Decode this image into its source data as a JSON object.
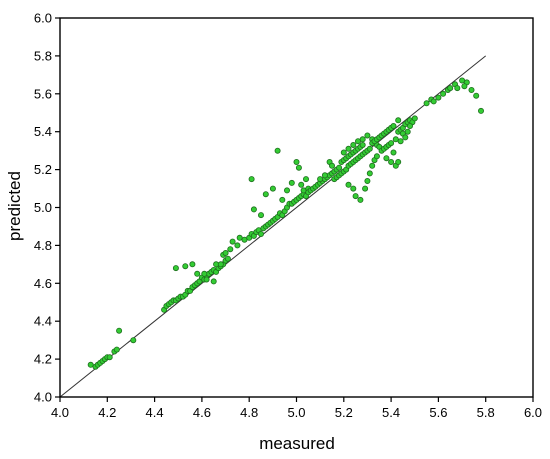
{
  "chart_data": {
    "type": "scatter",
    "xlabel": "measured",
    "ylabel": "predicted",
    "xlim": [
      4.0,
      6.0
    ],
    "ylim": [
      4.0,
      6.0
    ],
    "x_ticks": [
      "4.0",
      "4.2",
      "4.4",
      "4.6",
      "4.8",
      "5.0",
      "5.2",
      "5.4",
      "5.6",
      "5.8",
      "6.0"
    ],
    "y_ticks": [
      "4.0",
      "4.2",
      "4.4",
      "4.6",
      "4.8",
      "5.0",
      "5.2",
      "5.4",
      "5.6",
      "5.8",
      "6.0"
    ],
    "grid": false,
    "reference_line": {
      "from": [
        4.0,
        4.0
      ],
      "to": [
        5.8,
        5.8
      ],
      "color": "#333333"
    },
    "marker_color": "#33cc33",
    "series": [
      {
        "points": [
          [
            4.13,
            4.17
          ],
          [
            4.15,
            4.16
          ],
          [
            4.16,
            4.17
          ],
          [
            4.17,
            4.18
          ],
          [
            4.18,
            4.19
          ],
          [
            4.19,
            4.2
          ],
          [
            4.2,
            4.21
          ],
          [
            4.21,
            4.21
          ],
          [
            4.23,
            4.24
          ],
          [
            4.24,
            4.25
          ],
          [
            4.25,
            4.35
          ],
          [
            4.31,
            4.3
          ],
          [
            4.44,
            4.46
          ],
          [
            4.45,
            4.48
          ],
          [
            4.46,
            4.49
          ],
          [
            4.47,
            4.5
          ],
          [
            4.48,
            4.51
          ],
          [
            4.49,
            4.51
          ],
          [
            4.5,
            4.52
          ],
          [
            4.51,
            4.53
          ],
          [
            4.52,
            4.53
          ],
          [
            4.53,
            4.54
          ],
          [
            4.54,
            4.56
          ],
          [
            4.55,
            4.56
          ],
          [
            4.56,
            4.58
          ],
          [
            4.57,
            4.59
          ],
          [
            4.58,
            4.6
          ],
          [
            4.59,
            4.61
          ],
          [
            4.6,
            4.63
          ],
          [
            4.61,
            4.62
          ],
          [
            4.62,
            4.64
          ],
          [
            4.63,
            4.65
          ],
          [
            4.64,
            4.66
          ],
          [
            4.65,
            4.67
          ],
          [
            4.66,
            4.66
          ],
          [
            4.67,
            4.68
          ],
          [
            4.68,
            4.69
          ],
          [
            4.69,
            4.7
          ],
          [
            4.7,
            4.72
          ],
          [
            4.71,
            4.73
          ],
          [
            4.49,
            4.68
          ],
          [
            4.53,
            4.69
          ],
          [
            4.56,
            4.7
          ],
          [
            4.58,
            4.65
          ],
          [
            4.61,
            4.65
          ],
          [
            4.62,
            4.62
          ],
          [
            4.65,
            4.61
          ],
          [
            4.66,
            4.7
          ],
          [
            4.68,
            4.7
          ],
          [
            4.69,
            4.75
          ],
          [
            4.7,
            4.76
          ],
          [
            4.72,
            4.78
          ],
          [
            4.73,
            4.82
          ],
          [
            4.75,
            4.8
          ],
          [
            4.76,
            4.84
          ],
          [
            4.78,
            4.83
          ],
          [
            4.8,
            4.84
          ],
          [
            4.81,
            4.86
          ],
          [
            4.82,
            4.85
          ],
          [
            4.83,
            4.87
          ],
          [
            4.84,
            4.88
          ],
          [
            4.85,
            4.86
          ],
          [
            4.86,
            4.89
          ],
          [
            4.87,
            4.9
          ],
          [
            4.88,
            4.91
          ],
          [
            4.89,
            4.92
          ],
          [
            4.9,
            4.93
          ],
          [
            4.91,
            4.94
          ],
          [
            4.92,
            4.95
          ],
          [
            4.93,
            4.97
          ],
          [
            4.94,
            4.96
          ],
          [
            4.95,
            4.98
          ],
          [
            4.96,
            5.0
          ],
          [
            4.97,
            5.02
          ],
          [
            4.98,
            5.02
          ],
          [
            4.99,
            5.03
          ],
          [
            5.0,
            5.04
          ],
          [
            5.01,
            5.05
          ],
          [
            5.02,
            5.06
          ],
          [
            5.03,
            5.07
          ],
          [
            4.81,
            5.15
          ],
          [
            4.82,
            4.99
          ],
          [
            4.85,
            4.96
          ],
          [
            4.87,
            5.07
          ],
          [
            4.9,
            5.1
          ],
          [
            4.92,
            5.3
          ],
          [
            4.94,
            5.04
          ],
          [
            4.96,
            5.09
          ],
          [
            4.98,
            5.13
          ],
          [
            5.0,
            5.24
          ],
          [
            5.01,
            5.21
          ],
          [
            5.02,
            5.12
          ],
          [
            5.03,
            5.09
          ],
          [
            5.04,
            5.15
          ],
          [
            5.05,
            5.1
          ],
          [
            5.04,
            5.06
          ],
          [
            5.05,
            5.08
          ],
          [
            5.06,
            5.09
          ],
          [
            5.07,
            5.1
          ],
          [
            5.08,
            5.11
          ],
          [
            5.09,
            5.12
          ],
          [
            5.1,
            5.13
          ],
          [
            5.11,
            5.14
          ],
          [
            5.12,
            5.15
          ],
          [
            5.13,
            5.16
          ],
          [
            5.14,
            5.17
          ],
          [
            5.15,
            5.18
          ],
          [
            5.16,
            5.19
          ],
          [
            5.17,
            5.2
          ],
          [
            5.18,
            5.21
          ],
          [
            5.1,
            5.15
          ],
          [
            5.12,
            5.17
          ],
          [
            5.14,
            5.24
          ],
          [
            5.15,
            5.22
          ],
          [
            5.16,
            5.15
          ],
          [
            5.17,
            5.16
          ],
          [
            5.18,
            5.17
          ],
          [
            5.19,
            5.18
          ],
          [
            5.2,
            5.19
          ],
          [
            5.21,
            5.2
          ],
          [
            5.19,
            5.24
          ],
          [
            5.2,
            5.25
          ],
          [
            5.21,
            5.26
          ],
          [
            5.22,
            5.27
          ],
          [
            5.23,
            5.28
          ],
          [
            5.24,
            5.29
          ],
          [
            5.25,
            5.3
          ],
          [
            5.26,
            5.31
          ],
          [
            5.27,
            5.32
          ],
          [
            5.28,
            5.33
          ],
          [
            5.22,
            5.22
          ],
          [
            5.23,
            5.23
          ],
          [
            5.24,
            5.24
          ],
          [
            5.25,
            5.25
          ],
          [
            5.26,
            5.26
          ],
          [
            5.27,
            5.27
          ],
          [
            5.28,
            5.28
          ],
          [
            5.29,
            5.29
          ],
          [
            5.3,
            5.3
          ],
          [
            5.31,
            5.31
          ],
          [
            5.2,
            5.29
          ],
          [
            5.22,
            5.31
          ],
          [
            5.24,
            5.33
          ],
          [
            5.26,
            5.35
          ],
          [
            5.28,
            5.36
          ],
          [
            5.3,
            5.38
          ],
          [
            5.32,
            5.36
          ],
          [
            5.33,
            5.34
          ],
          [
            5.34,
            5.33
          ],
          [
            5.35,
            5.32
          ],
          [
            5.22,
            5.12
          ],
          [
            5.24,
            5.1
          ],
          [
            5.25,
            5.06
          ],
          [
            5.27,
            5.04
          ],
          [
            5.29,
            5.1
          ],
          [
            5.3,
            5.14
          ],
          [
            5.31,
            5.18
          ],
          [
            5.32,
            5.22
          ],
          [
            5.33,
            5.25
          ],
          [
            5.34,
            5.27
          ],
          [
            5.32,
            5.34
          ],
          [
            5.33,
            5.35
          ],
          [
            5.34,
            5.36
          ],
          [
            5.35,
            5.37
          ],
          [
            5.36,
            5.38
          ],
          [
            5.37,
            5.39
          ],
          [
            5.38,
            5.4
          ],
          [
            5.39,
            5.41
          ],
          [
            5.4,
            5.42
          ],
          [
            5.41,
            5.43
          ],
          [
            5.36,
            5.3
          ],
          [
            5.37,
            5.31
          ],
          [
            5.38,
            5.32
          ],
          [
            5.39,
            5.33
          ],
          [
            5.4,
            5.34
          ],
          [
            5.38,
            5.26
          ],
          [
            5.4,
            5.24
          ],
          [
            5.42,
            5.22
          ],
          [
            5.43,
            5.24
          ],
          [
            5.41,
            5.29
          ],
          [
            5.42,
            5.36
          ],
          [
            5.43,
            5.4
          ],
          [
            5.44,
            5.41
          ],
          [
            5.45,
            5.42
          ],
          [
            5.46,
            5.44
          ],
          [
            5.47,
            5.45
          ],
          [
            5.48,
            5.46
          ],
          [
            5.49,
            5.45
          ],
          [
            5.5,
            5.47
          ],
          [
            5.43,
            5.46
          ],
          [
            5.45,
            5.39
          ],
          [
            5.46,
            5.37
          ],
          [
            5.47,
            5.4
          ],
          [
            5.48,
            5.43
          ],
          [
            5.44,
            5.35
          ],
          [
            5.55,
            5.55
          ],
          [
            5.57,
            5.57
          ],
          [
            5.6,
            5.58
          ],
          [
            5.62,
            5.6
          ],
          [
            5.64,
            5.62
          ],
          [
            5.65,
            5.63
          ],
          [
            5.67,
            5.65
          ],
          [
            5.7,
            5.67
          ],
          [
            5.72,
            5.66
          ],
          [
            5.74,
            5.62
          ],
          [
            5.76,
            5.59
          ],
          [
            5.78,
            5.51
          ],
          [
            5.71,
            5.64
          ],
          [
            5.68,
            5.63
          ],
          [
            5.58,
            5.56
          ]
        ]
      }
    ]
  }
}
